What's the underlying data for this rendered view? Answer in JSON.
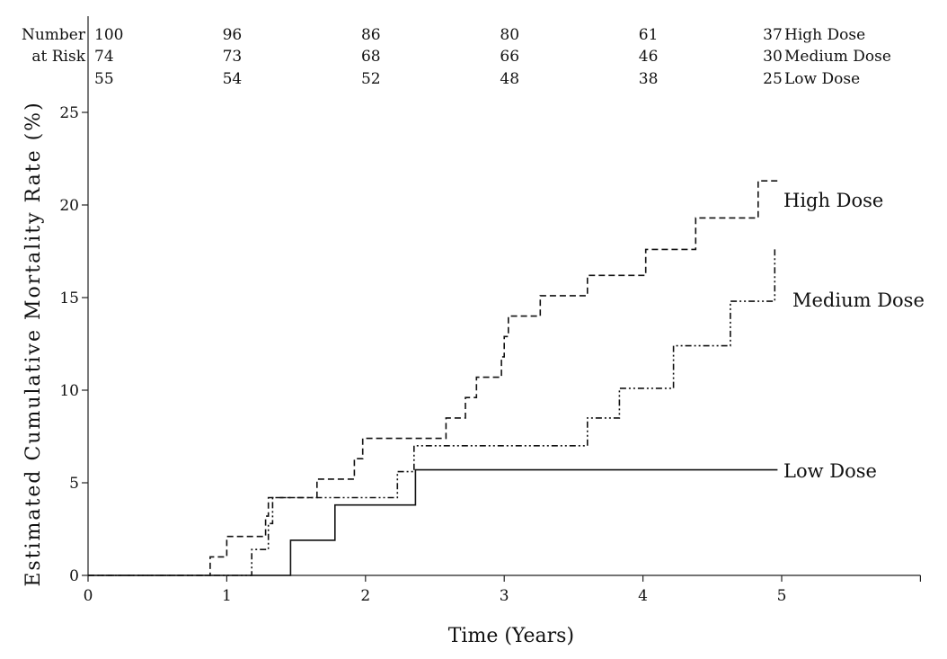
{
  "chart_data": {
    "type": "line",
    "title": "",
    "xlabel": "Time (Years)",
    "ylabel": "Estimated Cumulative Mortality Rate (%)",
    "xlim": [
      0,
      6
    ],
    "ylim": [
      0,
      25
    ],
    "x_ticks": [
      0,
      1,
      2,
      3,
      4,
      5
    ],
    "y_ticks": [
      0,
      5,
      10,
      15,
      20,
      25
    ],
    "step": true,
    "grid": false,
    "legend": "inline labels at right end of curves",
    "series": [
      {
        "name": "High Dose",
        "line_style": "dashed",
        "points": [
          [
            0,
            0
          ],
          [
            0.88,
            0
          ],
          [
            0.88,
            1.0
          ],
          [
            1.0,
            1.0
          ],
          [
            1.0,
            2.1
          ],
          [
            1.28,
            2.1
          ],
          [
            1.28,
            3.2
          ],
          [
            1.3,
            3.2
          ],
          [
            1.3,
            4.2
          ],
          [
            1.65,
            4.2
          ],
          [
            1.65,
            5.2
          ],
          [
            1.92,
            5.2
          ],
          [
            1.92,
            6.3
          ],
          [
            1.98,
            6.3
          ],
          [
            1.98,
            7.4
          ],
          [
            2.58,
            7.4
          ],
          [
            2.58,
            8.5
          ],
          [
            2.72,
            8.5
          ],
          [
            2.72,
            9.6
          ],
          [
            2.8,
            9.6
          ],
          [
            2.8,
            10.7
          ],
          [
            2.98,
            10.7
          ],
          [
            2.98,
            11.8
          ],
          [
            3.0,
            11.8
          ],
          [
            3.0,
            12.9
          ],
          [
            3.03,
            12.9
          ],
          [
            3.03,
            14.0
          ],
          [
            3.26,
            14.0
          ],
          [
            3.26,
            15.1
          ],
          [
            3.6,
            15.1
          ],
          [
            3.6,
            16.2
          ],
          [
            4.02,
            16.2
          ],
          [
            4.02,
            17.6
          ],
          [
            4.38,
            17.6
          ],
          [
            4.38,
            19.3
          ],
          [
            4.83,
            19.3
          ],
          [
            4.83,
            21.3
          ],
          [
            4.97,
            21.3
          ]
        ]
      },
      {
        "name": "Medium Dose",
        "line_style": "dash-dot-dot",
        "points": [
          [
            0,
            0
          ],
          [
            1.18,
            0
          ],
          [
            1.18,
            1.4
          ],
          [
            1.3,
            1.4
          ],
          [
            1.3,
            2.8
          ],
          [
            1.33,
            2.8
          ],
          [
            1.33,
            4.2
          ],
          [
            2.23,
            4.2
          ],
          [
            2.23,
            5.6
          ],
          [
            2.35,
            5.6
          ],
          [
            2.35,
            7.0
          ],
          [
            3.6,
            7.0
          ],
          [
            3.6,
            8.5
          ],
          [
            3.83,
            8.5
          ],
          [
            3.83,
            10.1
          ],
          [
            4.22,
            10.1
          ],
          [
            4.22,
            12.4
          ],
          [
            4.63,
            12.4
          ],
          [
            4.63,
            14.8
          ],
          [
            4.95,
            14.8
          ],
          [
            4.95,
            17.6
          ]
        ]
      },
      {
        "name": "Low Dose",
        "line_style": "solid",
        "points": [
          [
            0,
            0
          ],
          [
            1.46,
            0
          ],
          [
            1.46,
            1.9
          ],
          [
            1.78,
            1.9
          ],
          [
            1.78,
            3.8
          ],
          [
            2.36,
            3.8
          ],
          [
            2.36,
            5.7
          ],
          [
            4.97,
            5.7
          ]
        ]
      }
    ],
    "curve_labels": [
      {
        "series": "High Dose",
        "text": "High Dose"
      },
      {
        "series": "Medium Dose",
        "text": "Medium Dose"
      },
      {
        "series": "Low Dose",
        "text": "Low Dose"
      }
    ],
    "risk_table": {
      "row_label_1": "Number",
      "row_label_2": "at Risk",
      "times": [
        0,
        1,
        2,
        3,
        4,
        5
      ],
      "rows": [
        {
          "name": "High Dose",
          "values": [
            100,
            96,
            86,
            80,
            61,
            37
          ]
        },
        {
          "name": "Medium Dose",
          "values": [
            74,
            73,
            68,
            66,
            46,
            30
          ]
        },
        {
          "name": "Low Dose",
          "values": [
            55,
            54,
            52,
            48,
            38,
            25
          ]
        }
      ]
    }
  }
}
